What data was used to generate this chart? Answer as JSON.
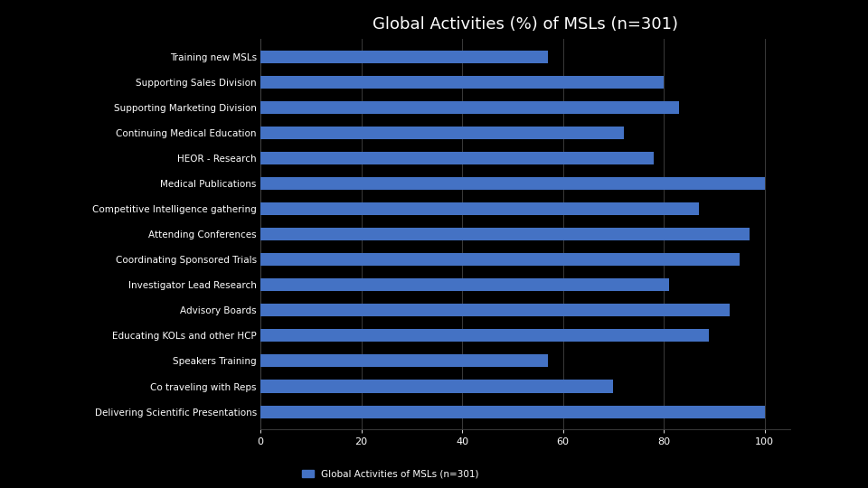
{
  "title": "Global Activities (%) of MSLs (n=301)",
  "categories": [
    "Training new MSLs",
    "Supporting Sales Division",
    "Supporting Marketing Division",
    "Continuing Medical Education",
    "HEOR - Research",
    "Medical Publications",
    "Competitive Intelligence gathering",
    "Attending Conferences",
    "Coordinating Sponsored Trials",
    "Investigator Lead Research",
    "Advisory Boards",
    "Educating KOLs and other HCP",
    "Speakers Training",
    "Co traveling with Reps",
    "Delivering Scientific Presentations"
  ],
  "values": [
    57,
    80,
    83,
    72,
    78,
    100,
    87,
    97,
    95,
    81,
    93,
    89,
    57,
    70,
    100
  ],
  "bar_color": "#4472C4",
  "background_color": "#000000",
  "text_color": "#ffffff",
  "title_color": "#ffffff",
  "title_fontsize": 13,
  "label_fontsize": 7.5,
  "tick_fontsize": 8,
  "legend_label": "Global Activities of MSLs (n=301)",
  "legend_color": "#4472C4",
  "xlim": [
    0,
    105
  ],
  "xticks": [
    0,
    20,
    40,
    60,
    80,
    100
  ],
  "grid_color": "#444444",
  "bar_height": 0.5
}
